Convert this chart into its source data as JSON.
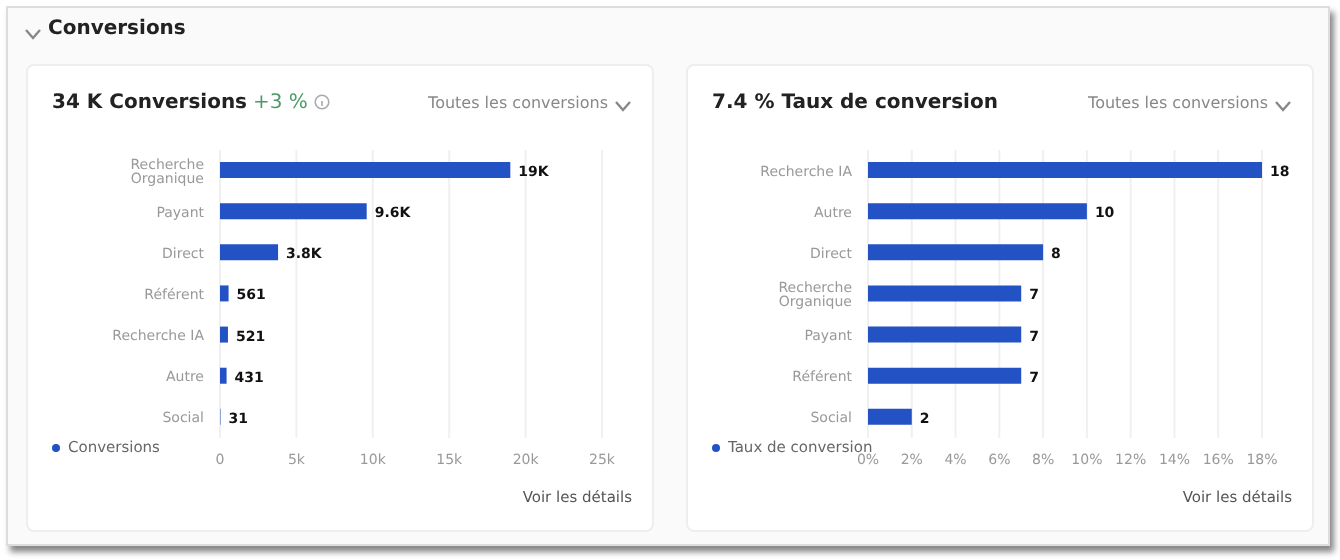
{
  "chart_data": [
    {
      "type": "bar",
      "orientation": "horizontal",
      "title": "34 K Conversions",
      "subtitle": "+3 %",
      "categories": [
        "Recherche Organique",
        "Payant",
        "Direct",
        "Référent",
        "Recherche IA",
        "Autre",
        "Social"
      ],
      "series": [
        {
          "name": "Conversions",
          "color": "#2352c4",
          "values": [
            19000,
            9600,
            3800,
            561,
            521,
            431,
            31
          ],
          "value_labels": [
            "19K",
            "9.6K",
            "3.8K",
            "561",
            "521",
            "431",
            "31"
          ]
        }
      ],
      "xlim": [
        0,
        25000
      ],
      "xticks": [
        0,
        {
          "value": 5000,
          "label": "5k"
        },
        {
          "value": 10000,
          "label": "10k"
        },
        {
          "value": 15000,
          "label": "15k"
        },
        {
          "value": 20000,
          "label": "20k"
        },
        {
          "value": 25000,
          "label": "25k"
        }
      ],
      "grid": "x",
      "legend": "bottom",
      "annotations": [
        "Toutes les conversions",
        "Voir les détails",
        "Conversions"
      ]
    },
    {
      "type": "bar",
      "orientation": "horizontal",
      "title": "7.4 % Taux de conversion",
      "categories": [
        "Recherche IA",
        "Autre",
        "Direct",
        "Recherche Organique",
        "Payant",
        "Référent",
        "Social"
      ],
      "series": [
        {
          "name": "Taux de conversion",
          "color": "#2352c4",
          "values": [
            18,
            10,
            8,
            7,
            7,
            7,
            2
          ]
        }
      ],
      "data_labels": true,
      "xlim": [
        0,
        18
      ],
      "xticks": [
        {
          "value": 0,
          "label": "0%"
        },
        {
          "value": 2,
          "label": "2%"
        },
        {
          "value": 4,
          "label": "4%"
        },
        {
          "value": 6,
          "label": "6%"
        },
        {
          "value": 8,
          "label": "8%"
        },
        {
          "value": 10,
          "label": "10%"
        },
        {
          "value": 12,
          "label": "12%"
        },
        {
          "value": 14,
          "label": "14%"
        },
        {
          "value": 16,
          "label": "16%"
        },
        {
          "value": 18,
          "label": "18%"
        }
      ],
      "grid": "x",
      "legend": "bottom",
      "annotations": [
        "Toutes les conversions",
        "Voir les détails"
      ]
    }
  ]
}
